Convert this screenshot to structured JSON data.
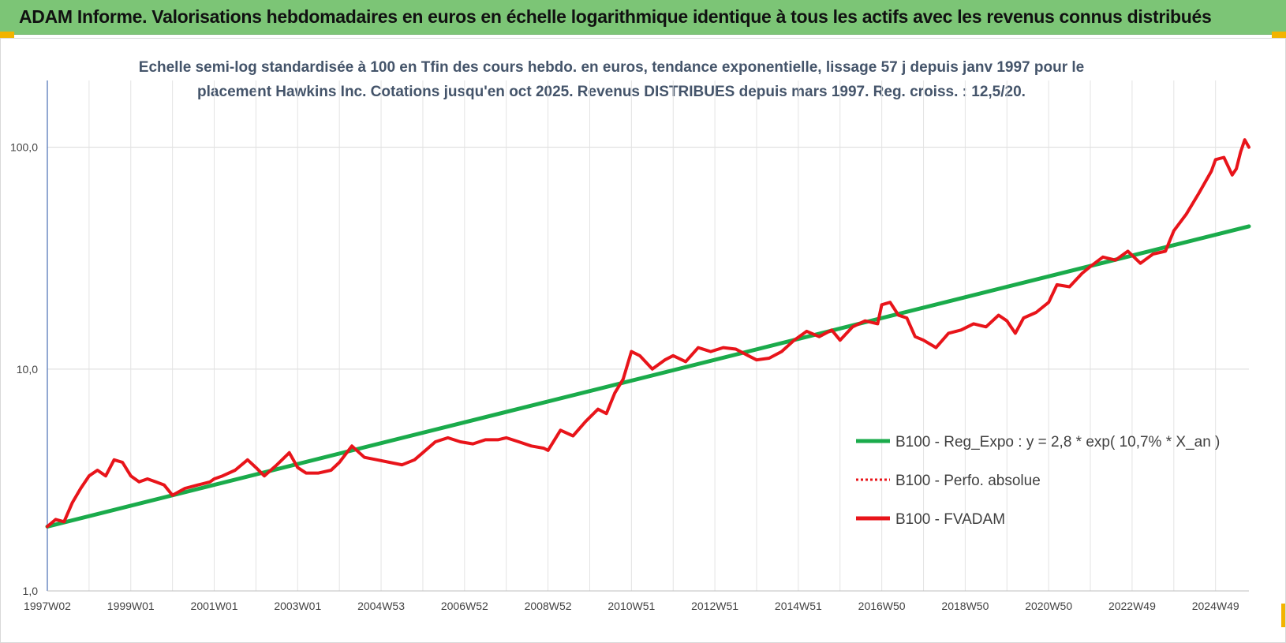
{
  "header": {
    "title": "ADAM Informe. Valorisations hebdomadaires en euros en échelle logarithmique identique à tous les actifs avec les revenus connus distribués"
  },
  "colors": {
    "banner": "#7cc576",
    "accent": "#f2b400",
    "regression": "#1aab4b",
    "fvadam": "#e8141a",
    "perfo": "#e8141a"
  },
  "chart_data": {
    "type": "line",
    "title": "Echelle semi-log standardisée à 100 en Tfin des cours hebdo. en euros, tendance exponentielle, lissage 57 j depuis janv 1997 pour le placement Hawkins Inc. Cotations jusqu'en oct 2025. Revenus DISTRIBUES depuis mars 1997. Reg. croiss. : 12,5/20.",
    "y_scale": "log",
    "ylim": [
      1,
      200
    ],
    "xlim": [
      1997.0,
      2025.8
    ],
    "grid": true,
    "legend_position": "right",
    "y_ticks": [
      {
        "value": 1,
        "label": "1,0"
      },
      {
        "value": 10,
        "label": "10,0"
      },
      {
        "value": 100,
        "label": "100,0"
      }
    ],
    "x_ticks": [
      {
        "value": 1997.0,
        "label": "1997W02"
      },
      {
        "value": 1999.0,
        "label": "1999W01"
      },
      {
        "value": 2001.0,
        "label": "2001W01"
      },
      {
        "value": 2003.0,
        "label": "2003W01"
      },
      {
        "value": 2005.0,
        "label": "2004W53"
      },
      {
        "value": 2007.0,
        "label": "2006W52"
      },
      {
        "value": 2009.0,
        "label": "2008W52"
      },
      {
        "value": 2011.0,
        "label": "2010W51"
      },
      {
        "value": 2013.0,
        "label": "2012W51"
      },
      {
        "value": 2015.0,
        "label": "2014W51"
      },
      {
        "value": 2017.0,
        "label": "2016W50"
      },
      {
        "value": 2019.0,
        "label": "2018W50"
      },
      {
        "value": 2021.0,
        "label": "2020W50"
      },
      {
        "value": 2023.0,
        "label": "2022W49"
      },
      {
        "value": 2025.0,
        "label": "2024W49"
      }
    ],
    "series": [
      {
        "name": "B100 - Reg_Expo : y = 2,8 * exp( 10,7% *  X_an )",
        "style": "solid",
        "color": "#1aab4b",
        "x": [
          1997.0,
          2025.8
        ],
        "y": [
          1.95,
          44.0
        ]
      },
      {
        "name": "B100 - Perfo. absolue",
        "style": "dotted",
        "color": "#e8141a",
        "x": [],
        "y": []
      },
      {
        "name": "B100 - FVADAM",
        "style": "solid",
        "color": "#e8141a",
        "x": [
          1997.0,
          1997.2,
          1997.4,
          1997.6,
          1997.8,
          1998.0,
          1998.2,
          1998.4,
          1998.6,
          1998.8,
          1999.0,
          1999.2,
          1999.4,
          1999.6,
          1999.8,
          2000.0,
          2000.3,
          2000.6,
          2000.9,
          2001.0,
          2001.2,
          2001.5,
          2001.8,
          2002.0,
          2002.2,
          2002.5,
          2002.8,
          2003.0,
          2003.2,
          2003.5,
          2003.8,
          2004.0,
          2004.3,
          2004.6,
          2004.9,
          2005.2,
          2005.5,
          2005.8,
          2006.0,
          2006.3,
          2006.6,
          2006.9,
          2007.2,
          2007.5,
          2007.8,
          2008.0,
          2008.3,
          2008.6,
          2008.9,
          2009.0,
          2009.3,
          2009.6,
          2009.9,
          2010.2,
          2010.4,
          2010.6,
          2010.8,
          2011.0,
          2011.2,
          2011.5,
          2011.8,
          2012.0,
          2012.3,
          2012.6,
          2012.9,
          2013.2,
          2013.5,
          2013.8,
          2014.0,
          2014.3,
          2014.6,
          2014.9,
          2015.2,
          2015.5,
          2015.8,
          2016.0,
          2016.3,
          2016.6,
          2016.9,
          2017.0,
          2017.2,
          2017.4,
          2017.6,
          2017.8,
          2018.0,
          2018.3,
          2018.6,
          2018.9,
          2019.2,
          2019.5,
          2019.8,
          2020.0,
          2020.2,
          2020.4,
          2020.7,
          2021.0,
          2021.2,
          2021.5,
          2021.8,
          2022.0,
          2022.3,
          2022.6,
          2022.9,
          2023.2,
          2023.5,
          2023.8,
          2024.0,
          2024.3,
          2024.6,
          2024.9,
          2025.0,
          2025.2,
          2025.4,
          2025.5,
          2025.6,
          2025.7,
          2025.8
        ],
        "y": [
          1.95,
          2.1,
          2.05,
          2.5,
          2.9,
          3.3,
          3.5,
          3.3,
          3.9,
          3.8,
          3.3,
          3.1,
          3.2,
          3.1,
          3.0,
          2.7,
          2.9,
          3.0,
          3.1,
          3.2,
          3.3,
          3.5,
          3.9,
          3.6,
          3.3,
          3.7,
          4.2,
          3.6,
          3.4,
          3.4,
          3.5,
          3.8,
          4.5,
          4.0,
          3.9,
          3.8,
          3.7,
          3.9,
          4.2,
          4.7,
          4.9,
          4.7,
          4.6,
          4.8,
          4.8,
          4.9,
          4.7,
          4.5,
          4.4,
          4.3,
          5.3,
          5.0,
          5.8,
          6.6,
          6.3,
          7.8,
          9.0,
          12.0,
          11.5,
          10.0,
          11.0,
          11.5,
          10.8,
          12.5,
          12.0,
          12.5,
          12.3,
          11.5,
          11.0,
          11.2,
          12.0,
          13.5,
          14.8,
          14.0,
          15.0,
          13.5,
          15.5,
          16.5,
          16.0,
          19.5,
          20.0,
          17.5,
          17.0,
          14.0,
          13.5,
          12.5,
          14.5,
          15.0,
          16.0,
          15.5,
          17.5,
          16.5,
          14.5,
          17.0,
          18.0,
          20.0,
          24.0,
          23.5,
          27.0,
          29.0,
          32.0,
          31.0,
          34.0,
          30.0,
          33.0,
          34.0,
          42.0,
          50.0,
          62.0,
          78.0,
          88.0,
          90.0,
          75.0,
          80.0,
          95.0,
          108.0,
          100.0
        ]
      }
    ]
  }
}
